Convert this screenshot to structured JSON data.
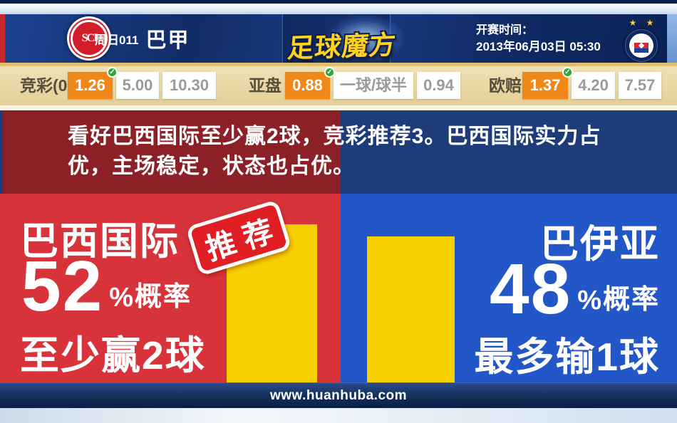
{
  "header": {
    "match_code": "周日011",
    "league": "巴甲",
    "site_logo": "足球魔方",
    "kickoff_label": "开赛时间：",
    "kickoff_datetime": "2013年06月03日 05:30",
    "home_badge_monogram": "SCI",
    "away_badge_stars": "★ ★"
  },
  "odds_bar": {
    "check_icon": "✓",
    "groups": [
      {
        "label": "竞彩(0)",
        "values": [
          "1.26",
          "5.00",
          "10.30"
        ]
      },
      {
        "label": "亚盘",
        "values": [
          "0.88",
          "一球/球半",
          "0.94"
        ]
      },
      {
        "label": "欧赔",
        "values": [
          "1.37",
          "4.20",
          "7.57"
        ]
      }
    ]
  },
  "analysis": {
    "line1": "看好巴西国际至少赢2球，竞彩推荐3。巴西国际实力占",
    "line2": "优，主场稳定，状态也占优。"
  },
  "panels": {
    "home": {
      "team": "巴西国际",
      "probability": 52,
      "percent_sign": "%",
      "probability_label": "概率",
      "outcome": "至少赢2球",
      "stamp": "推荐"
    },
    "away": {
      "team": "巴伊亚",
      "probability": 48,
      "percent_sign": "%",
      "probability_label": "概率",
      "outcome": "最多输1球"
    }
  },
  "footer": {
    "url": "www.huanhuba.com"
  },
  "colors": {
    "accent_orange": "#f08719",
    "panel_red": "#d8333a",
    "panel_blue": "#2356c6",
    "bar_yellow": "#f6d000",
    "banner_red": "#8b2127",
    "banner_blue": "#1e3c7a",
    "check_green": "#2fa838"
  }
}
